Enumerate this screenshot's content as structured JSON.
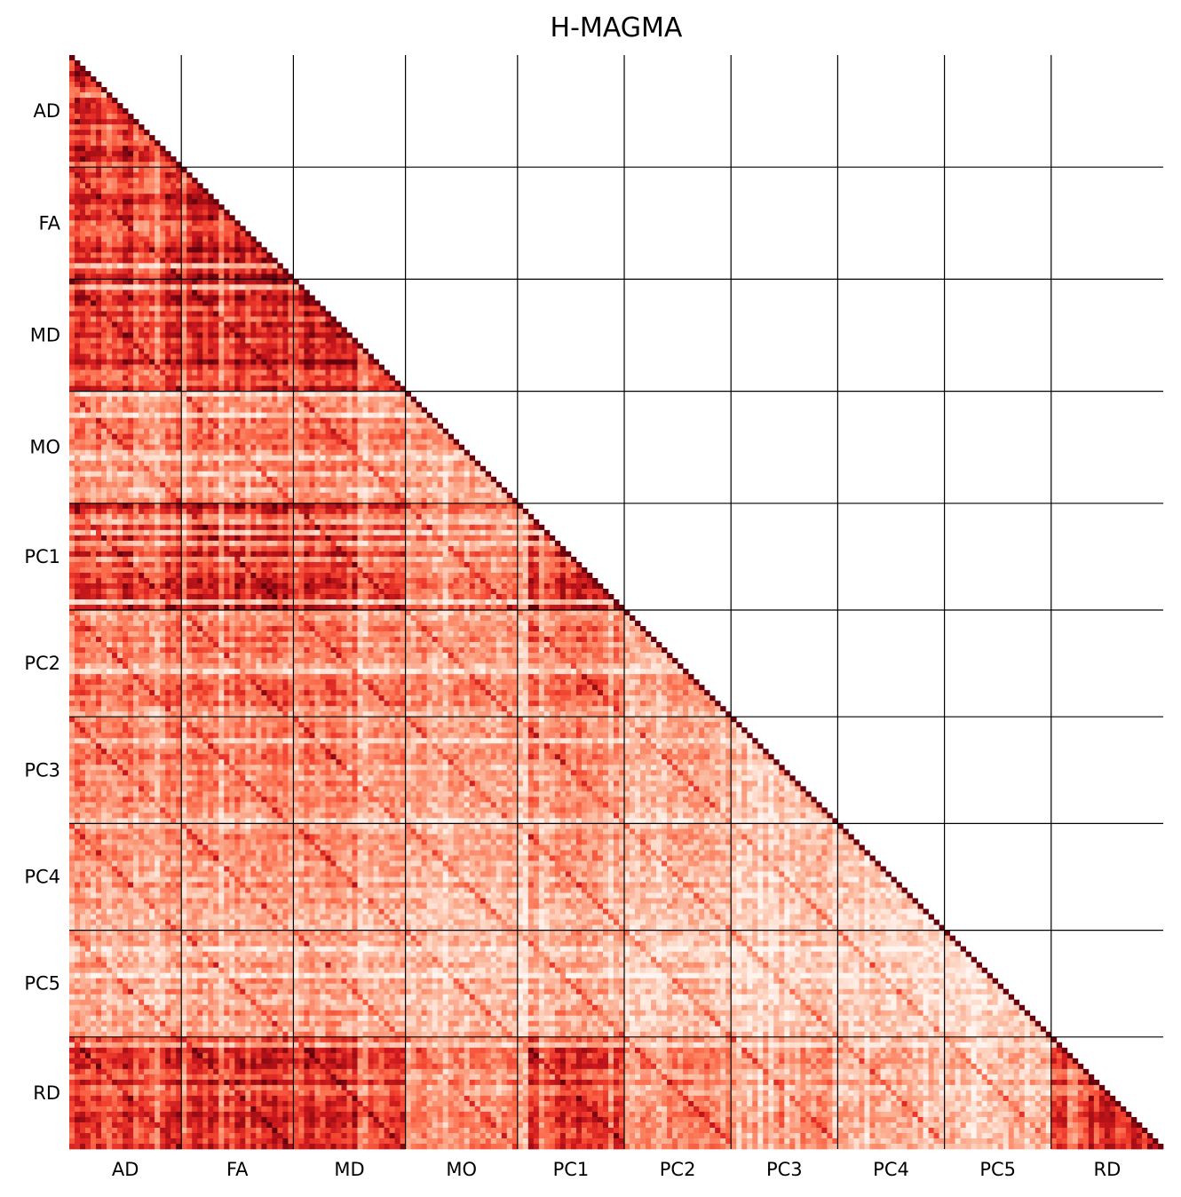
{
  "chart_data": {
    "type": "heatmap",
    "title": "H-MAGMA",
    "layout": "lower-triangular correlation matrix with block grid",
    "colormap": "Reds (white to dark red)",
    "value_range": [
      0,
      1
    ],
    "grid": true,
    "blocks": [
      {
        "label": "AD",
        "size": 21
      },
      {
        "label": "FA",
        "size": 21
      },
      {
        "label": "MD",
        "size": 21
      },
      {
        "label": "MO",
        "size": 21
      },
      {
        "label": "PC1",
        "size": 20
      },
      {
        "label": "PC2",
        "size": 20
      },
      {
        "label": "PC3",
        "size": 20
      },
      {
        "label": "PC4",
        "size": 20
      },
      {
        "label": "PC5",
        "size": 20
      },
      {
        "label": "RD",
        "size": 21
      }
    ],
    "x_tick_labels": [
      "AD",
      "FA",
      "MD",
      "MO",
      "PC1",
      "PC2",
      "PC3",
      "PC4",
      "PC5",
      "RD"
    ],
    "y_tick_labels": [
      "AD",
      "FA",
      "MD",
      "MO",
      "PC1",
      "PC2",
      "PC3",
      "PC4",
      "PC5",
      "RD"
    ],
    "block_mean_correlation": [
      [
        0.62
      ],
      [
        0.58,
        0.7
      ],
      [
        0.62,
        0.66,
        0.72
      ],
      [
        0.4,
        0.42,
        0.44,
        0.35
      ],
      [
        0.58,
        0.64,
        0.62,
        0.42,
        0.62
      ],
      [
        0.4,
        0.42,
        0.42,
        0.35,
        0.42,
        0.28
      ],
      [
        0.4,
        0.4,
        0.4,
        0.32,
        0.38,
        0.28,
        0.25
      ],
      [
        0.34,
        0.34,
        0.34,
        0.28,
        0.32,
        0.25,
        0.22,
        0.2
      ],
      [
        0.28,
        0.3,
        0.3,
        0.24,
        0.28,
        0.2,
        0.2,
        0.18,
        0.16
      ],
      [
        0.62,
        0.66,
        0.66,
        0.4,
        0.62,
        0.38,
        0.36,
        0.3,
        0.26,
        0.7
      ]
    ],
    "diagonal_value": 1.0
  }
}
